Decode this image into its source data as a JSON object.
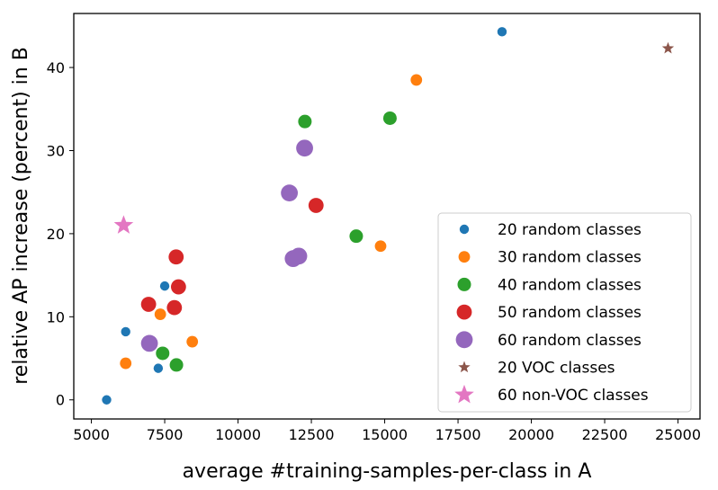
{
  "chart_data": {
    "type": "scatter",
    "title": "",
    "xlabel": "average #training-samples-per-class in A",
    "ylabel": "relative AP increase (percent) in B",
    "xlim": [
      4400,
      25750
    ],
    "ylim": [
      -2.3,
      46.5
    ],
    "xticks": [
      5000,
      7500,
      10000,
      12500,
      15000,
      17500,
      20000,
      22500,
      25000
    ],
    "yticks": [
      0,
      10,
      20,
      30,
      40
    ],
    "grid": false,
    "legend_position": "lower-right",
    "series": [
      {
        "name": "20 random classes",
        "color": "#1f77b4",
        "marker": "circle",
        "size": "small",
        "points": [
          [
            5520,
            0.0
          ],
          [
            6170,
            8.2
          ],
          [
            7280,
            3.8
          ],
          [
            7500,
            13.7
          ],
          [
            19000,
            44.3
          ]
        ]
      },
      {
        "name": "30 random classes",
        "color": "#ff7f0e",
        "marker": "circle",
        "size": "medium",
        "points": [
          [
            6170,
            4.4
          ],
          [
            7350,
            10.3
          ],
          [
            8440,
            7.0
          ],
          [
            14860,
            18.5
          ],
          [
            16080,
            38.5
          ]
        ]
      },
      {
        "name": "40 random classes",
        "color": "#2ca02c",
        "marker": "circle",
        "size": "medium-large",
        "points": [
          [
            7430,
            5.6
          ],
          [
            7900,
            4.2
          ],
          [
            12280,
            33.5
          ],
          [
            14030,
            19.7
          ],
          [
            15180,
            33.9
          ]
        ]
      },
      {
        "name": "50 random classes",
        "color": "#d62728",
        "marker": "circle",
        "size": "large",
        "points": [
          [
            6950,
            11.5
          ],
          [
            7830,
            11.1
          ],
          [
            7890,
            17.2
          ],
          [
            7970,
            13.6
          ],
          [
            12660,
            23.4
          ]
        ]
      },
      {
        "name": "60 random classes",
        "color": "#9467bd",
        "marker": "circle",
        "size": "extra-large",
        "points": [
          [
            6980,
            6.8
          ],
          [
            11750,
            24.9
          ],
          [
            11880,
            17.0
          ],
          [
            12070,
            17.3
          ],
          [
            12270,
            30.3
          ]
        ]
      },
      {
        "name": "20 VOC classes",
        "color": "#8c564b",
        "marker": "star",
        "size": "small",
        "points": [
          [
            24660,
            42.3
          ]
        ]
      },
      {
        "name": "60 non-VOC classes",
        "color": "#e377c2",
        "marker": "star",
        "size": "large",
        "points": [
          [
            6100,
            21.0
          ]
        ]
      }
    ]
  }
}
